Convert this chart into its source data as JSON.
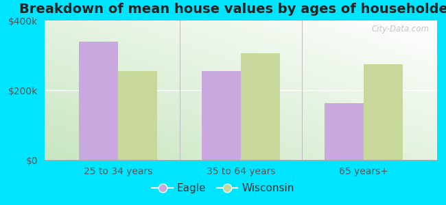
{
  "title": "Breakdown of mean house values by ages of householders",
  "categories": [
    "25 to 34 years",
    "35 to 64 years",
    "65 years+"
  ],
  "eagle_values": [
    340000,
    255000,
    162000
  ],
  "wisconsin_values": [
    255000,
    305000,
    275000
  ],
  "eagle_color": "#c9a8e0",
  "wisconsin_color": "#c8d89a",
  "ylim": [
    0,
    400000
  ],
  "yticks": [
    0,
    200000,
    400000
  ],
  "ytick_labels": [
    "$0",
    "$200k",
    "$400k"
  ],
  "bar_width": 0.32,
  "background_color": "#00e5ff",
  "legend_eagle": "Eagle",
  "legend_wisconsin": "Wisconsin",
  "title_fontsize": 14,
  "tick_fontsize": 10,
  "legend_fontsize": 11,
  "watermark": "City-Data.com"
}
